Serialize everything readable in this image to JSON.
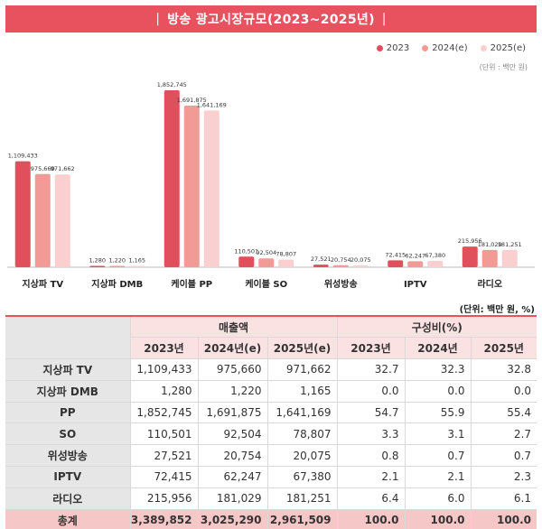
{
  "title": "방송 광고시장규모(2023~2025년)",
  "legend_unit": "(단위 : 백만 원)",
  "table_unit": "(단위: 백만 원, %)",
  "colors": {
    "s2023": "#e0505c",
    "s2024": "#f19a96",
    "s2025": "#f9d0cf",
    "accent": "#e8525f"
  },
  "chart_data": {
    "type": "bar",
    "categories": [
      "지상파 TV",
      "지상파 DMB",
      "케이블 PP",
      "케이블 SO",
      "위성방송",
      "IPTV",
      "라디오"
    ],
    "series": [
      {
        "name": "2023",
        "values": [
          1109433,
          1280,
          1852745,
          110501,
          27521,
          72415,
          215956
        ],
        "labels": [
          "1,109,433",
          "1,280",
          "1,852,745",
          "110,501",
          "27,521",
          "72,415",
          "215,956"
        ]
      },
      {
        "name": "2024(e)",
        "values": [
          975660,
          1220,
          1691875,
          92504,
          20754,
          62247,
          181029
        ],
        "labels": [
          "975,660",
          "1,220",
          "1,691,875",
          "92,504",
          "20,754",
          "62,247",
          "181,029"
        ]
      },
      {
        "name": "2025(e)",
        "values": [
          971662,
          1165,
          1641169,
          78807,
          20075,
          67380,
          181251
        ],
        "labels": [
          "971,662",
          "1,165",
          "1,641,169",
          "78,807",
          "20,075",
          "67,380",
          "181,251"
        ]
      }
    ],
    "ylim": [
      0,
      1852745
    ]
  },
  "table": {
    "group_headers": [
      "매출액",
      "구성비(%)"
    ],
    "year_headers": [
      "2023년",
      "2024년(e)",
      "2025년(e)",
      "2023년",
      "2024년",
      "2025년"
    ],
    "rows": [
      {
        "label": "지상파 TV",
        "values": [
          "1,109,433",
          "975,660",
          "971,662",
          "32.7",
          "32.3",
          "32.8"
        ]
      },
      {
        "label": "지상파 DMB",
        "values": [
          "1,280",
          "1,220",
          "1,165",
          "0.0",
          "0.0",
          "0.0"
        ]
      },
      {
        "label": "PP",
        "values": [
          "1,852,745",
          "1,691,875",
          "1,641,169",
          "54.7",
          "55.9",
          "55.4"
        ]
      },
      {
        "label": "SO",
        "values": [
          "110,501",
          "92,504",
          "78,807",
          "3.3",
          "3.1",
          "2.7"
        ]
      },
      {
        "label": "위성방송",
        "values": [
          "27,521",
          "20,754",
          "20,075",
          "0.8",
          "0.7",
          "0.7"
        ]
      },
      {
        "label": "IPTV",
        "values": [
          "72,415",
          "62,247",
          "67,380",
          "2.1",
          "2.1",
          "2.3"
        ]
      },
      {
        "label": "라디오",
        "values": [
          "215,956",
          "181,029",
          "181,251",
          "6.4",
          "6.0",
          "6.1"
        ]
      }
    ],
    "total": {
      "label": "총계",
      "values": [
        "3,389,852",
        "3,025,290",
        "2,961,509",
        "100.0",
        "100.0",
        "100.0"
      ]
    }
  }
}
